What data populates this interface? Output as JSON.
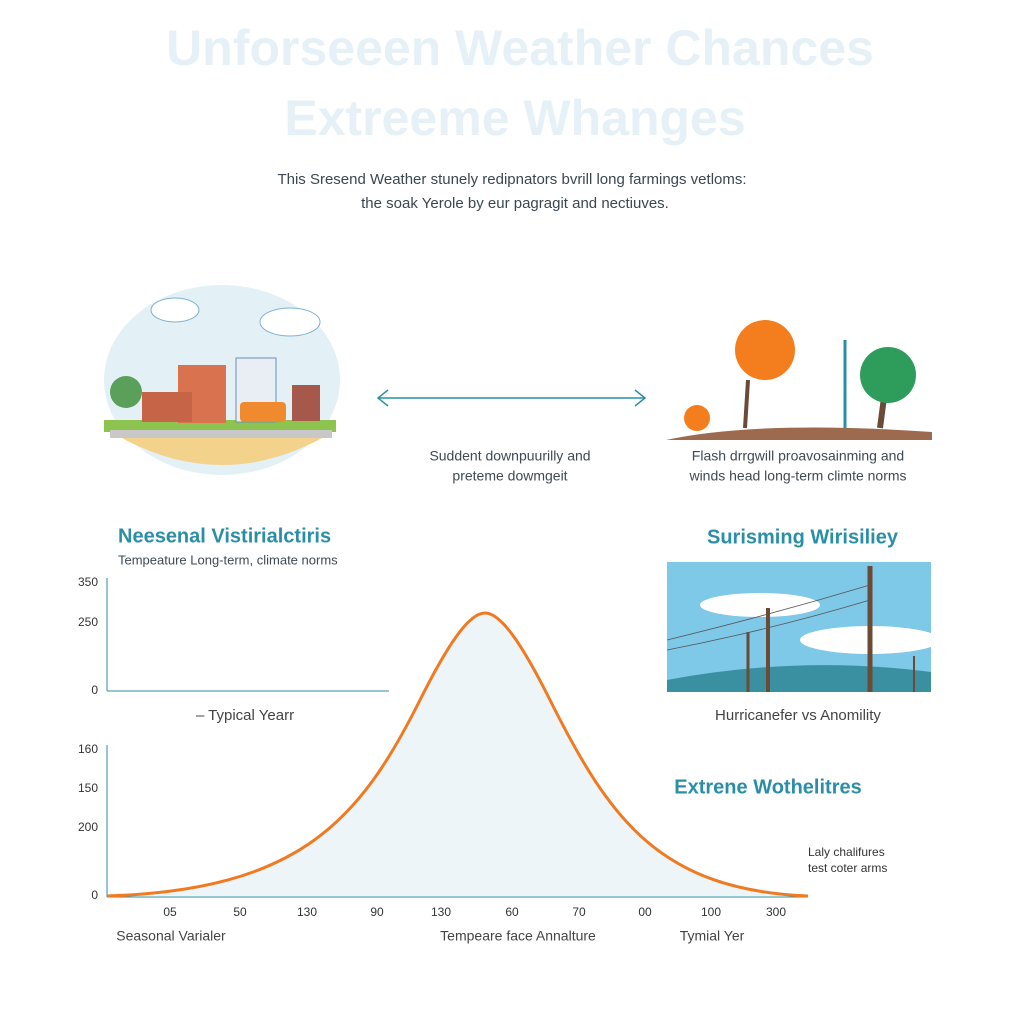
{
  "header": {
    "title_lines": [
      "Unforseeen Weather Chances",
      "Extreeme Whanges"
    ],
    "subtitle_lines": [
      "This Sresend Weather stunely redipnators bvrill long farmings vetloms:",
      "the soak Yerole by eur pagragit and nectiuves."
    ]
  },
  "middle_caption": [
    "Suddent downpuurilly and",
    "preteme dowmgeit"
  ],
  "right_caption": [
    "Flash drrgwill proavosainming and",
    "winds head long-term climte norms"
  ],
  "left_section": {
    "heading": "Neesenal Vistirialctiris",
    "subheading": "Tempeature Long-term, climate norms",
    "y_labels": [
      "350",
      "250",
      "0"
    ],
    "legend": "– Typical Yearr"
  },
  "right_section": {
    "heading": "Surisming Wirisiliey",
    "caption": "Hurricanefer vs Anomility",
    "heading2": "Extrene Wothelitres",
    "note_lines": [
      "Laly chalifures",
      "test coter arms"
    ]
  },
  "lower_chart": {
    "y_labels": [
      "160",
      "150",
      "200",
      "0"
    ],
    "x_labels": [
      "05",
      "50",
      "130",
      "90",
      "130",
      "60",
      "70",
      "00",
      "100",
      "300"
    ],
    "bottom_labels": [
      "Seasonal Varialer",
      "Tempeare face Annalture",
      "Tymial Yer"
    ]
  }
}
